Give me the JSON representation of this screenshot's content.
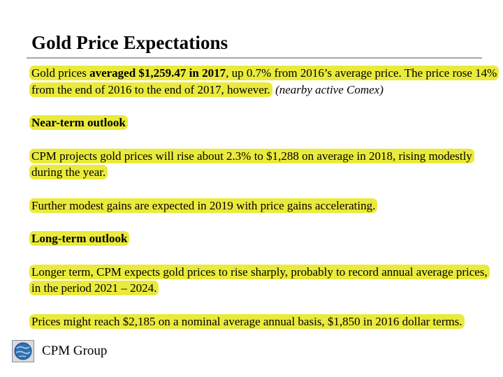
{
  "slide": {
    "title": "Gold Price Expectations"
  },
  "paragraphs": {
    "p1": {
      "text_a": "Gold prices ",
      "bold": "averaged $1,259.47 in 2017",
      "text_b": ", up 0.7% from 2016’s average price. The price rose 14% from the end of 2016 to the end of 2017, however.",
      "note": " (nearby active Comex)"
    },
    "near_term_heading": "Near-term outlook",
    "p2": "CPM projects gold prices will rise about 2.3% to $1,288 on average in 2018, rising modestly during the year.",
    "p3": "Further modest gains are expected in 2019 with price gains accelerating.",
    "long_term_heading": "Long-term outlook",
    "p4": "Longer term, CPM expects gold prices to rise sharply, probably to record annual average prices, in the period 2021 – 2024.",
    "p5": "Prices might reach $2,185 on a nominal average annual basis, $1,850 in 2016 dollar terms."
  },
  "footer": {
    "company": "CPM Group",
    "logo_icon": "cpm-globe-logo"
  },
  "colors": {
    "highlight": "#eaea3c",
    "rule": "#a6a6a6",
    "logo_blue": "#2e6fb0",
    "logo_frame": "#8a8f98"
  }
}
